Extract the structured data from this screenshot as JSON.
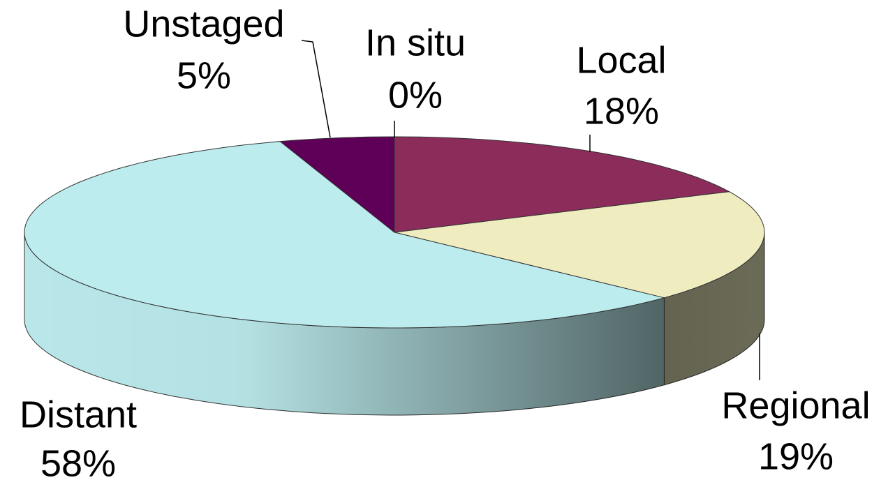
{
  "chart_data": {
    "type": "pie",
    "categories": [
      "In situ",
      "Local",
      "Regional",
      "Distant",
      "Unstaged"
    ],
    "values": [
      0,
      18,
      19,
      58,
      5
    ],
    "value_labels": [
      "0%",
      "18%",
      "19%",
      "58%",
      "5%"
    ],
    "colors": [
      "#6a1f6a",
      "#8b2c5a",
      "#efedc0",
      "#bdecee",
      "#5e0057"
    ]
  }
}
